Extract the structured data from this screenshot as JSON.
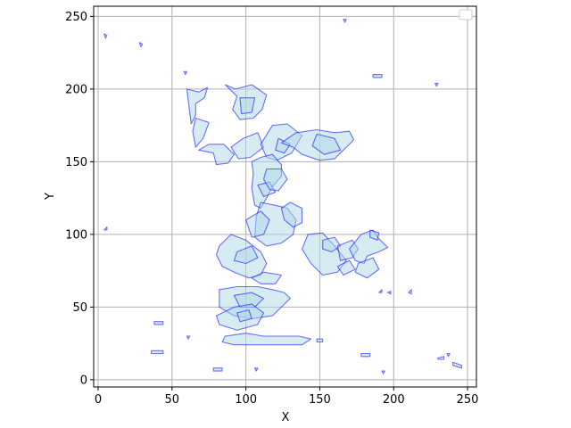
{
  "chart_data": {
    "type": "area",
    "title": "",
    "xlabel": "X",
    "ylabel": "Y",
    "xlim": [
      -3,
      256
    ],
    "ylim": [
      -5,
      257
    ],
    "xticks": [
      0,
      50,
      100,
      150,
      200,
      250
    ],
    "yticks": [
      0,
      50,
      100,
      150,
      200,
      250
    ],
    "grid": true,
    "legend": {
      "placement": "top-right",
      "entries": []
    },
    "colors": {
      "fill": "#add8e6",
      "edge": "#0000ff"
    },
    "fill_alpha": 0.5,
    "edge_alpha": 0.55,
    "polygons": [
      [
        [
          60,
          200
        ],
        [
          68,
          198
        ],
        [
          74,
          201
        ],
        [
          72,
          194
        ],
        [
          66,
          190
        ],
        [
          66,
          182
        ],
        [
          63,
          176
        ]
      ],
      [
        [
          66,
          180
        ],
        [
          75,
          177
        ],
        [
          71,
          166
        ],
        [
          66,
          160
        ],
        [
          64,
          171
        ]
      ],
      [
        [
          68,
          158
        ],
        [
          78,
          156
        ],
        [
          80,
          148
        ],
        [
          88,
          149
        ],
        [
          92,
          155
        ],
        [
          85,
          162
        ],
        [
          75,
          162
        ]
      ],
      [
        [
          90,
          160
        ],
        [
          98,
          166
        ],
        [
          108,
          170
        ],
        [
          112,
          160
        ],
        [
          103,
          153
        ],
        [
          95,
          152
        ]
      ],
      [
        [
          86,
          203
        ],
        [
          93,
          200
        ],
        [
          104,
          203
        ],
        [
          114,
          196
        ],
        [
          111,
          186
        ],
        [
          105,
          180
        ],
        [
          96,
          179
        ],
        [
          91,
          186
        ],
        [
          94,
          195
        ]
      ],
      [
        [
          96,
          194
        ],
        [
          106,
          194
        ],
        [
          104,
          184
        ],
        [
          97,
          183
        ]
      ],
      [
        [
          110,
          162
        ],
        [
          118,
          175
        ],
        [
          128,
          176
        ],
        [
          138,
          168
        ],
        [
          131,
          156
        ],
        [
          121,
          151
        ],
        [
          114,
          153
        ]
      ],
      [
        [
          122,
          166
        ],
        [
          130,
          162
        ],
        [
          126,
          156
        ],
        [
          120,
          158
        ]
      ],
      [
        [
          124,
          163
        ],
        [
          134,
          170
        ],
        [
          148,
          172
        ],
        [
          160,
          170
        ],
        [
          170,
          171
        ],
        [
          173,
          165
        ],
        [
          168,
          160
        ],
        [
          160,
          152
        ],
        [
          150,
          151
        ],
        [
          138,
          155
        ],
        [
          132,
          160
        ]
      ],
      [
        [
          148,
          169
        ],
        [
          160,
          166
        ],
        [
          164,
          158
        ],
        [
          153,
          155
        ],
        [
          145,
          161
        ]
      ],
      [
        [
          104,
          150
        ],
        [
          110,
          153
        ],
        [
          118,
          155
        ],
        [
          124,
          148
        ],
        [
          124,
          140
        ],
        [
          118,
          133
        ],
        [
          114,
          125
        ],
        [
          110,
          118
        ],
        [
          106,
          120
        ],
        [
          104,
          132
        ],
        [
          105,
          142
        ]
      ],
      [
        [
          108,
          134
        ],
        [
          116,
          136
        ],
        [
          120,
          129
        ],
        [
          112,
          126
        ]
      ],
      [
        [
          114,
          145
        ],
        [
          124,
          145
        ],
        [
          128,
          138
        ],
        [
          122,
          130
        ],
        [
          116,
          131
        ],
        [
          112,
          138
        ]
      ],
      [
        [
          110,
          122
        ],
        [
          120,
          120
        ],
        [
          128,
          118
        ],
        [
          134,
          110
        ],
        [
          132,
          100
        ],
        [
          124,
          94
        ],
        [
          114,
          92
        ],
        [
          106,
          98
        ],
        [
          107,
          112
        ]
      ],
      [
        [
          124,
          118
        ],
        [
          130,
          122
        ],
        [
          138,
          118
        ],
        [
          138,
          108
        ],
        [
          132,
          105
        ],
        [
          126,
          110
        ]
      ],
      [
        [
          100,
          110
        ],
        [
          110,
          116
        ],
        [
          116,
          110
        ],
        [
          112,
          100
        ],
        [
          104,
          98
        ]
      ],
      [
        [
          142,
          100
        ],
        [
          152,
          101
        ],
        [
          160,
          92
        ],
        [
          168,
          82
        ],
        [
          162,
          74
        ],
        [
          152,
          72
        ],
        [
          144,
          80
        ],
        [
          138,
          90
        ]
      ],
      [
        [
          152,
          96
        ],
        [
          160,
          98
        ],
        [
          164,
          92
        ],
        [
          158,
          88
        ],
        [
          152,
          90
        ]
      ],
      [
        [
          162,
          92
        ],
        [
          172,
          96
        ],
        [
          176,
          90
        ],
        [
          172,
          84
        ],
        [
          164,
          82
        ]
      ],
      [
        [
          170,
          90
        ],
        [
          178,
          100
        ],
        [
          186,
          103
        ],
        [
          190,
          97
        ],
        [
          196,
          91
        ],
        [
          190,
          88
        ],
        [
          182,
          85
        ],
        [
          180,
          80
        ],
        [
          174,
          82
        ]
      ],
      [
        [
          184,
          103
        ],
        [
          190,
          101
        ],
        [
          189,
          96
        ],
        [
          184,
          98
        ]
      ],
      [
        [
          176,
          80
        ],
        [
          186,
          84
        ],
        [
          190,
          76
        ],
        [
          182,
          70
        ],
        [
          174,
          74
        ]
      ],
      [
        [
          162,
          78
        ],
        [
          170,
          82
        ],
        [
          174,
          76
        ],
        [
          166,
          72
        ]
      ],
      [
        [
          82,
          92
        ],
        [
          90,
          100
        ],
        [
          100,
          96
        ],
        [
          110,
          88
        ],
        [
          114,
          80
        ],
        [
          110,
          72
        ],
        [
          102,
          70
        ],
        [
          92,
          74
        ],
        [
          84,
          78
        ],
        [
          80,
          86
        ]
      ],
      [
        [
          94,
          88
        ],
        [
          104,
          92
        ],
        [
          108,
          84
        ],
        [
          100,
          80
        ],
        [
          92,
          82
        ]
      ],
      [
        [
          82,
          62
        ],
        [
          94,
          64
        ],
        [
          108,
          64
        ],
        [
          118,
          62
        ],
        [
          126,
          60
        ],
        [
          130,
          56
        ],
        [
          124,
          50
        ],
        [
          118,
          44
        ],
        [
          104,
          42
        ],
        [
          92,
          44
        ],
        [
          82,
          50
        ]
      ],
      [
        [
          92,
          58
        ],
        [
          104,
          60
        ],
        [
          112,
          56
        ],
        [
          106,
          50
        ],
        [
          96,
          50
        ]
      ],
      [
        [
          80,
          44
        ],
        [
          92,
          50
        ],
        [
          104,
          52
        ],
        [
          112,
          46
        ],
        [
          108,
          38
        ],
        [
          94,
          34
        ],
        [
          82,
          38
        ]
      ],
      [
        [
          94,
          46
        ],
        [
          102,
          48
        ],
        [
          104,
          42
        ],
        [
          96,
          40
        ]
      ],
      [
        [
          104,
          70
        ],
        [
          112,
          74
        ],
        [
          124,
          72
        ],
        [
          120,
          66
        ],
        [
          110,
          66
        ]
      ],
      [
        [
          86,
          30
        ],
        [
          100,
          32
        ],
        [
          112,
          30
        ],
        [
          122,
          30
        ],
        [
          136,
          30
        ],
        [
          144,
          28
        ],
        [
          138,
          24
        ],
        [
          122,
          24
        ],
        [
          106,
          24
        ],
        [
          92,
          24
        ],
        [
          84,
          26
        ]
      ],
      [
        [
          36,
          20
        ],
        [
          44,
          20
        ],
        [
          44,
          18
        ],
        [
          36,
          18
        ]
      ],
      [
        [
          38,
          40
        ],
        [
          44,
          40
        ],
        [
          44,
          38
        ],
        [
          38,
          38
        ]
      ],
      [
        [
          78,
          8
        ],
        [
          84,
          8
        ],
        [
          84,
          6
        ],
        [
          78,
          6
        ]
      ],
      [
        [
          178,
          18
        ],
        [
          184,
          18
        ],
        [
          184,
          16
        ],
        [
          178,
          16
        ]
      ],
      [
        [
          240,
          12
        ],
        [
          246,
          10
        ],
        [
          246,
          8
        ],
        [
          240,
          10
        ]
      ],
      [
        [
          230,
          15
        ],
        [
          234,
          16
        ],
        [
          234,
          14
        ],
        [
          230,
          14
        ]
      ],
      [
        [
          190,
          60
        ],
        [
          192,
          62
        ],
        [
          192,
          60
        ]
      ],
      [
        [
          196,
          60
        ],
        [
          198,
          61
        ],
        [
          198,
          59
        ]
      ],
      [
        [
          210,
          60
        ],
        [
          212,
          62
        ],
        [
          212,
          59
        ]
      ],
      [
        [
          4,
          238
        ],
        [
          6,
          237
        ],
        [
          5,
          235
        ]
      ],
      [
        [
          28,
          232
        ],
        [
          30,
          231
        ],
        [
          29,
          229
        ]
      ],
      [
        [
          58,
          212
        ],
        [
          60,
          212
        ],
        [
          59,
          210
        ]
      ],
      [
        [
          186,
          210
        ],
        [
          192,
          210
        ],
        [
          192,
          208
        ],
        [
          186,
          208
        ]
      ],
      [
        [
          166,
          248
        ],
        [
          168,
          248
        ],
        [
          167,
          246
        ]
      ],
      [
        [
          228,
          204
        ],
        [
          230,
          204
        ],
        [
          229,
          202
        ]
      ],
      [
        [
          4,
          103
        ],
        [
          6,
          105
        ],
        [
          6,
          103
        ]
      ],
      [
        [
          148,
          28
        ],
        [
          152,
          28
        ],
        [
          152,
          26
        ],
        [
          148,
          26
        ]
      ],
      [
        [
          106,
          8
        ],
        [
          108,
          8
        ],
        [
          107,
          6
        ]
      ],
      [
        [
          192,
          6
        ],
        [
          194,
          6
        ],
        [
          193,
          4
        ]
      ],
      [
        [
          236,
          18
        ],
        [
          238,
          18
        ],
        [
          237,
          16
        ]
      ],
      [
        [
          60,
          30
        ],
        [
          62,
          30
        ],
        [
          61,
          28
        ]
      ]
    ]
  }
}
